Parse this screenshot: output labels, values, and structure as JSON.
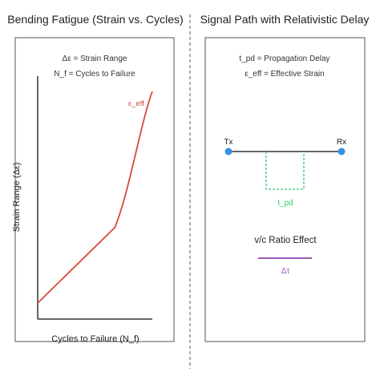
{
  "left_panel": {
    "title": "Bending Fatigue (Strain vs. Cycles)",
    "legend_line_1": "Δε = Strain Range",
    "legend_line_2": "N_f = Cycles to Failure",
    "curve_label": "ε_eff",
    "y_axis_label": "Strain Range (Δε)",
    "x_axis_label": "Cycles to Failure (N_f)"
  },
  "right_panel": {
    "title": "Signal Path with Relativistic Delay",
    "legend_line_1": "t_pd = Propagation Delay",
    "legend_line_2": "ε_eff = Effective Strain",
    "tx_label": "Tx",
    "rx_label": "Rx",
    "delay_label": "t_pd",
    "ratio_title": "v/c Ratio Effect",
    "ratio_label": "Δτ"
  },
  "colors": {
    "curve": "#d94a3a",
    "node": "#3a8fd9",
    "delay_box": "#2ecc71",
    "ratio_line": "#9b59b6",
    "axis": "#333333",
    "divider": "#777777"
  }
}
